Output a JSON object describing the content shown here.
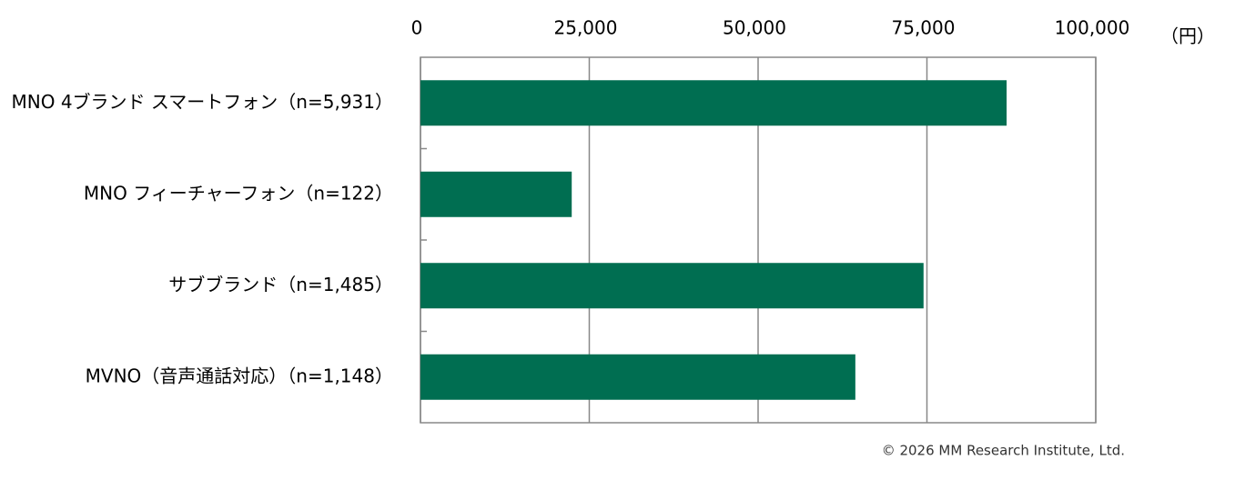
{
  "chart_data": {
    "type": "bar",
    "orientation": "horizontal",
    "unit": "（円）",
    "source": "© 2026 MM Research Institute, Ltd.",
    "categories": [
      "MNO 4ブランド スマートフォン（n=5,931）",
      "MNO フィーチャーフォン（n=122）",
      "サブブランド（n=1,485）",
      "MVNO（音声通話対応）（n=1,148）"
    ],
    "values": [
      86800,
      22400,
      74500,
      64400
    ],
    "color": "#006e51",
    "xlim": [
      0,
      100000
    ],
    "xticks": [
      0,
      {
        "value": 25000,
        "label": "25,000"
      },
      {
        "value": 50000,
        "label": "50,000"
      },
      {
        "value": 75000,
        "label": "75,000"
      },
      {
        "value": 100000,
        "label": "100,000"
      }
    ],
    "grid": true
  }
}
